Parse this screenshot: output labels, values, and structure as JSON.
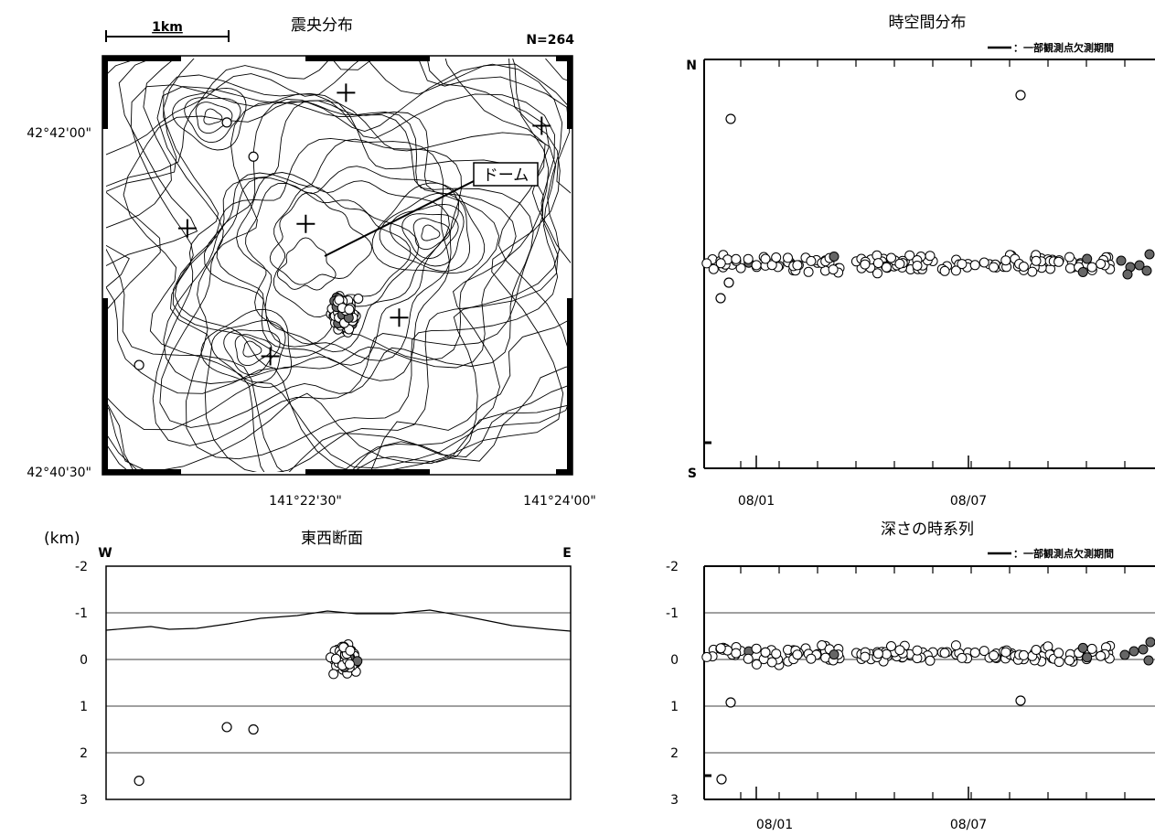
{
  "chart_data": [
    {
      "type": "scatter",
      "title": "震央分布",
      "count_label": "N=264",
      "scale_label": "1km",
      "dome_label": "ドーム",
      "lat_labels": [
        "42°42'00\"",
        "42°40'30\""
      ],
      "lon_labels": [
        "141°22'30\"",
        "141°24'00\""
      ],
      "xlim": [
        141.3465,
        141.4042
      ],
      "ylim": [
        42.675,
        42.7125
      ],
      "station_marks": [
        {
          "lon": 141.3763,
          "lat": 42.7094
        },
        {
          "lon": 141.4006,
          "lat": 42.7064
        },
        {
          "lon": 141.3566,
          "lat": 42.6971
        },
        {
          "lon": 141.3713,
          "lat": 42.6975
        },
        {
          "lon": 141.3829,
          "lat": 42.689
        },
        {
          "lon": 141.3669,
          "lat": 42.6855
        }
      ],
      "scattered_events": [
        {
          "lon": 141.3615,
          "lat": 42.7067
        },
        {
          "lon": 141.3648,
          "lat": 42.7036
        },
        {
          "lon": 141.3506,
          "lat": 42.6847
        }
      ],
      "cluster": {
        "lon": 141.3761,
        "lat": 42.6894,
        "spread_lon": 0.002,
        "spread_lat": 0.002
      }
    },
    {
      "type": "scatter",
      "title": "東西断面",
      "unit_label": "(km)",
      "west_label": "W",
      "east_label": "E",
      "xlim": [
        141.3465,
        141.4042
      ],
      "ylim": [
        -2,
        3
      ],
      "yticks": [
        "-2",
        "-1",
        "0",
        "1",
        "2",
        "3"
      ],
      "scattered_events": [
        {
          "lon": 141.3506,
          "depth": 2.6
        },
        {
          "lon": 141.3615,
          "depth": 1.45
        },
        {
          "lon": 141.3648,
          "depth": 1.5
        }
      ],
      "cluster": {
        "lon": 141.3761,
        "depth": 0.0
      }
    },
    {
      "type": "scatter",
      "title": "時空間分布",
      "legend_label": "：一部観測点欠測期間",
      "north_label": "N",
      "south_label": "S",
      "x_tick_labels": [
        "08/01",
        "08/07"
      ],
      "xlim": [
        0,
        14
      ],
      "ylim": [
        0,
        1
      ]
    },
    {
      "type": "scatter",
      "title": "深さの時系列",
      "legend_label": "：一部観測点欠測期間",
      "x_tick_labels": [
        "08/01",
        "08/07"
      ],
      "yticks": [
        "-2",
        "-1",
        "0",
        "1",
        "2",
        "3"
      ],
      "xlim": [
        0,
        14
      ],
      "ylim": [
        -2,
        3
      ]
    }
  ]
}
